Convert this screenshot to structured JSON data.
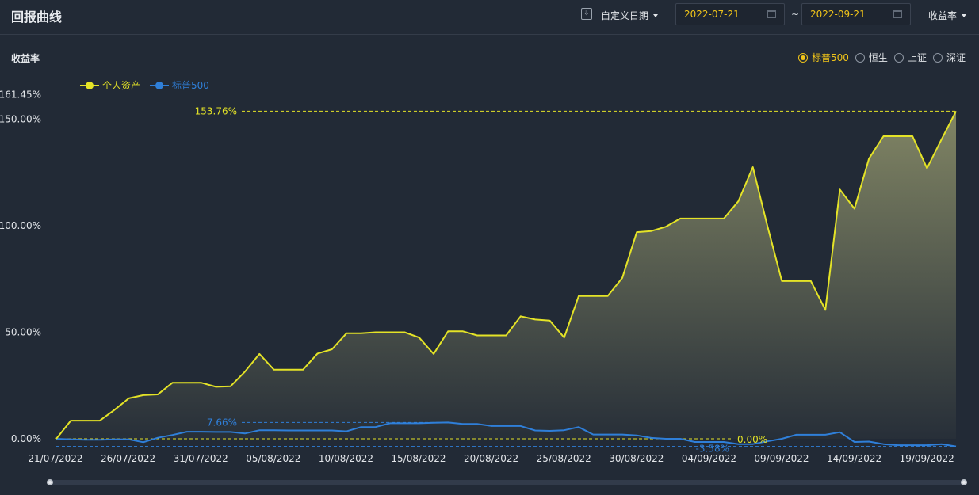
{
  "header": {
    "title": "回报曲线",
    "download_icon": "download-icon",
    "range_label": "自定义日期",
    "start_date": "2022-07-21",
    "end_date": "2022-09-21",
    "date_separator": "~",
    "metric_label": "收益率"
  },
  "colors": {
    "background": "#222a36",
    "personal": "#e4e327",
    "benchmark": "#2f7fd9",
    "accent": "#f0c419"
  },
  "benchmarks": [
    {
      "label": "标普500",
      "checked": true
    },
    {
      "label": "恒生",
      "checked": false
    },
    {
      "label": "上证",
      "checked": false
    },
    {
      "label": "深证",
      "checked": false
    }
  ],
  "chart_data": {
    "type": "area",
    "ylabel": "收益率",
    "xlabel": "",
    "ylim": [
      -3.58,
      161.45
    ],
    "y_ticks": [
      "161.45%",
      "150.00%",
      "100.00%",
      "50.00%",
      "0.00%"
    ],
    "x_ticks": [
      "21/07/2022",
      "26/07/2022",
      "31/07/2022",
      "05/08/2022",
      "10/08/2022",
      "15/08/2022",
      "20/08/2022",
      "25/08/2022",
      "30/08/2022",
      "04/09/2022",
      "09/09/2022",
      "14/09/2022",
      "19/09/2022"
    ],
    "legend_position": "top-left",
    "series": [
      {
        "name": "个人资产",
        "values": [
          0,
          8.5,
          8.5,
          8.5,
          13.5,
          19,
          20.5,
          20.8,
          26.3,
          26.3,
          26.3,
          24.4,
          24.6,
          31.5,
          39.8,
          32.4,
          32.4,
          32.4,
          40,
          42,
          49.5,
          49.5,
          50,
          50,
          50,
          47.5,
          39.8,
          50.5,
          50.5,
          48.5,
          48.5,
          48.5,
          57.5,
          56,
          55.5,
          47.5,
          67,
          67,
          67,
          75.5,
          97,
          97.5,
          99.5,
          103.4,
          103.4,
          103.4,
          103.4,
          111.5,
          127.5,
          100,
          74,
          74,
          74,
          60.5,
          117,
          108,
          131.5,
          142,
          142,
          142,
          127,
          140.5,
          153.76
        ]
      },
      {
        "name": "标普500",
        "values": [
          0,
          -0.3,
          -0.5,
          -0.5,
          -0.3,
          -0.3,
          -1.6,
          0.5,
          1.8,
          3.3,
          3.3,
          3.2,
          3.2,
          2.5,
          4,
          4,
          3.9,
          3.9,
          3.9,
          3.9,
          3.5,
          5.5,
          5.5,
          7.3,
          7.3,
          7.3,
          7.5,
          7.66,
          7,
          7,
          6,
          6,
          6,
          3.9,
          3.7,
          4,
          5.5,
          2,
          2,
          2,
          1.6,
          0.4,
          0,
          0,
          -1.5,
          -1.5,
          -1.5,
          -2.5,
          -2.5,
          -1.2,
          0,
          1.9,
          1.9,
          1.9,
          3.1,
          -1.5,
          -1.3,
          -2.5,
          -3,
          -3,
          -3,
          -2.5,
          -3.58
        ]
      }
    ],
    "annotations": [
      {
        "series": "个人资产",
        "type": "max",
        "label": "153.76%"
      },
      {
        "series": "个人资产",
        "type": "min",
        "label": "0.00%"
      },
      {
        "series": "标普500",
        "type": "max",
        "label": "7.66%"
      },
      {
        "series": "标普500",
        "type": "min",
        "label": "-3.58%"
      }
    ]
  }
}
